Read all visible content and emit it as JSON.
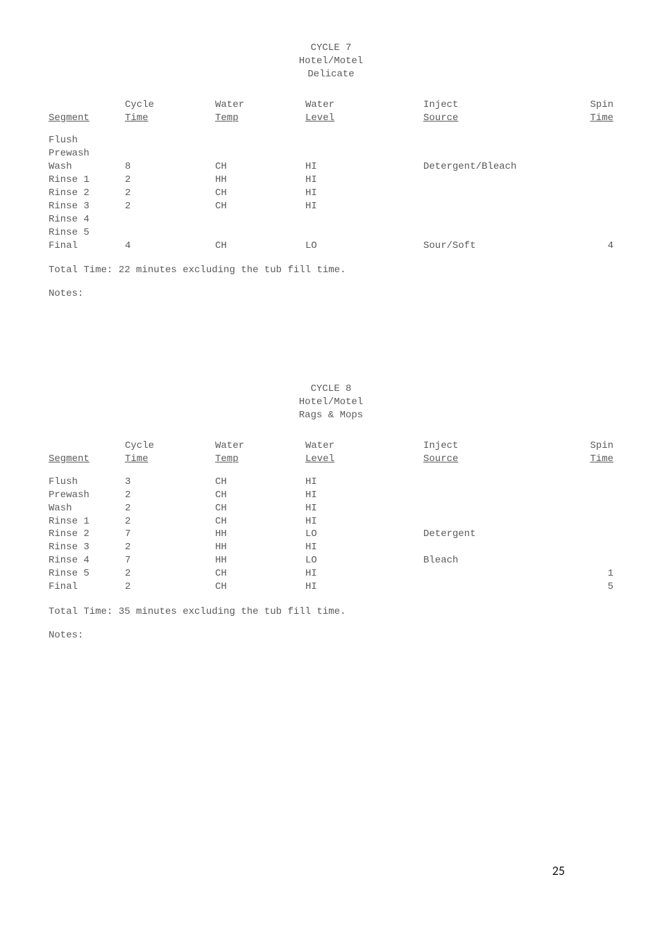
{
  "cycle7": {
    "title1": "CYCLE 7",
    "title2": "Hotel/Motel",
    "title3": "Delicate",
    "headers": {
      "segment_l1": "",
      "segment_l2": "Segment",
      "ctime_l1": "Cycle",
      "ctime_l2": "Time",
      "wtemp_l1": "Water",
      "wtemp_l2": "Temp",
      "wlevel_l1": "Water",
      "wlevel_l2": "Level",
      "inject_l1": "Inject",
      "inject_l2": "Source",
      "spin_l1": "Spin",
      "spin_l2": "Time"
    },
    "rows": [
      {
        "seg": "Flush",
        "ct": "",
        "wt": "",
        "wl": "",
        "inj": "",
        "sp": ""
      },
      {
        "seg": "Prewash",
        "ct": "",
        "wt": "",
        "wl": "",
        "inj": "",
        "sp": ""
      },
      {
        "seg": "Wash",
        "ct": "8",
        "wt": "CH",
        "wl": "HI",
        "inj": "Detergent/Bleach",
        "sp": ""
      },
      {
        "seg": "Rinse 1",
        "ct": "2",
        "wt": "HH",
        "wl": "HI",
        "inj": "",
        "sp": ""
      },
      {
        "seg": "Rinse 2",
        "ct": "2",
        "wt": "CH",
        "wl": "HI",
        "inj": "",
        "sp": ""
      },
      {
        "seg": "Rinse 3",
        "ct": "2",
        "wt": "CH",
        "wl": "HI",
        "inj": "",
        "sp": ""
      },
      {
        "seg": "Rinse 4",
        "ct": "",
        "wt": "",
        "wl": "",
        "inj": "",
        "sp": ""
      },
      {
        "seg": "Rinse 5",
        "ct": "",
        "wt": "",
        "wl": "",
        "inj": "",
        "sp": ""
      },
      {
        "seg": "Final",
        "ct": "4",
        "wt": "CH",
        "wl": "LO",
        "inj": "Sour/Soft",
        "sp": "4"
      }
    ],
    "total": "Total Time: 22 minutes excluding the tub fill time.",
    "notes": "Notes:"
  },
  "cycle8": {
    "title1": "CYCLE 8",
    "title2": "Hotel/Motel",
    "title3": "Rags & Mops",
    "headers": {
      "segment_l1": "",
      "segment_l2": "Segment",
      "ctime_l1": "Cycle",
      "ctime_l2": "Time",
      "wtemp_l1": "Water",
      "wtemp_l2": "Temp",
      "wlevel_l1": "Water",
      "wlevel_l2": "Level",
      "inject_l1": "Inject",
      "inject_l2": "Source",
      "spin_l1": "Spin",
      "spin_l2": "Time"
    },
    "rows": [
      {
        "seg": "Flush",
        "ct": "3",
        "wt": "CH",
        "wl": "HI",
        "inj": "",
        "sp": ""
      },
      {
        "seg": "Prewash",
        "ct": "2",
        "wt": "CH",
        "wl": "HI",
        "inj": "",
        "sp": ""
      },
      {
        "seg": "Wash",
        "ct": "2",
        "wt": "CH",
        "wl": "HI",
        "inj": "",
        "sp": ""
      },
      {
        "seg": "Rinse 1",
        "ct": "2",
        "wt": "CH",
        "wl": "HI",
        "inj": "",
        "sp": ""
      },
      {
        "seg": "Rinse 2",
        "ct": "7",
        "wt": "HH",
        "wl": "LO",
        "inj": "Detergent",
        "sp": ""
      },
      {
        "seg": "Rinse 3",
        "ct": "2",
        "wt": "HH",
        "wl": "HI",
        "inj": "",
        "sp": ""
      },
      {
        "seg": "Rinse 4",
        "ct": "7",
        "wt": "HH",
        "wl": "LO",
        "inj": "Bleach",
        "sp": ""
      },
      {
        "seg": "Rinse 5",
        "ct": "2",
        "wt": "CH",
        "wl": "HI",
        "inj": "",
        "sp": "1"
      },
      {
        "seg": "Final",
        "ct": "2",
        "wt": "CH",
        "wl": "HI",
        "inj": "",
        "sp": "5"
      }
    ],
    "total": "Total Time: 35 minutes excluding the tub fill time.",
    "notes": "Notes:"
  },
  "page_number": "25"
}
